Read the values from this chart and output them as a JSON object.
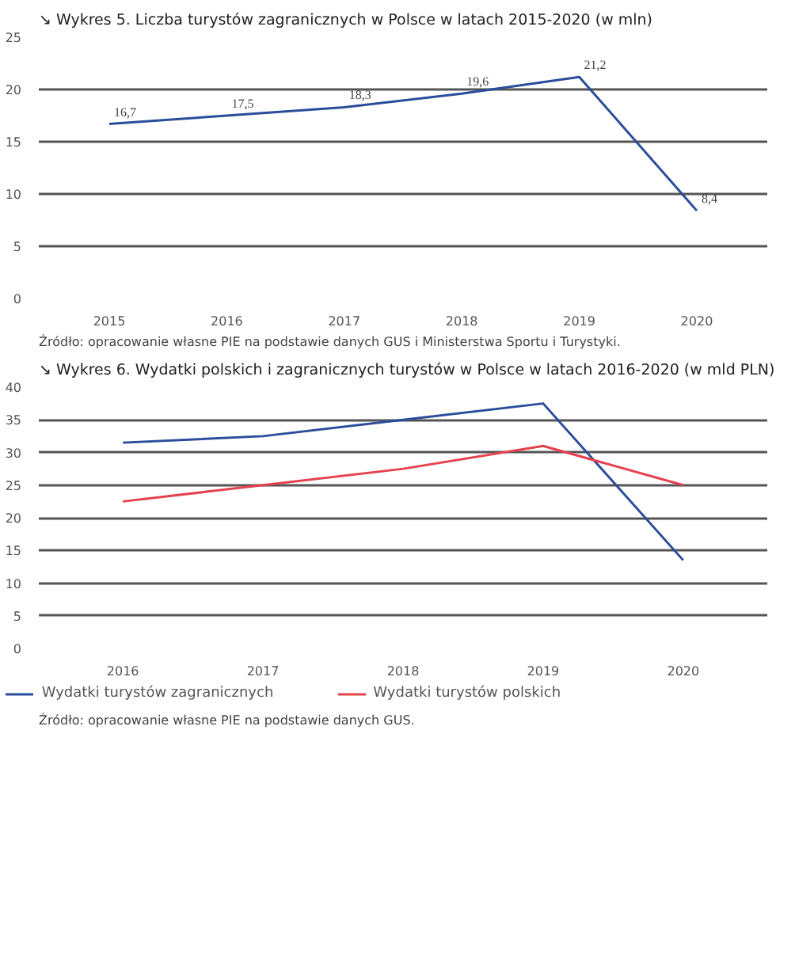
{
  "chart_data": [
    {
      "type": "line",
      "title": "↘ Wykres 5. Liczba turystów zagranicznych w Polsce w latach 2015-2020 (w mln)",
      "categories": [
        "2015",
        "2016",
        "2017",
        "2018",
        "2019",
        "2020"
      ],
      "series": [
        {
          "color": "#2a4d9b",
          "values": [
            16.7,
            17.5,
            18.3,
            19.6,
            21.2,
            8.4
          ]
        }
      ],
      "value_labels": [
        "16,7",
        "17,5",
        "18,3",
        "19,6",
        "21,2",
        "8,4"
      ],
      "ylim": [
        0,
        25
      ],
      "yticks": [
        0,
        5,
        10,
        15,
        20,
        25
      ],
      "grid": "y",
      "legend": false,
      "annotations": [
        "Źródło: opracowanie własne PIE na podstawie danych GUS i Ministerstwa Sportu i Turystyki."
      ]
    },
    {
      "type": "line",
      "title": "↘ Wykres 6. Wydatki polskich i zagranicznych turystów w Polsce w latach 2016-2020 (w mld PLN)",
      "categories": [
        "2016",
        "2017",
        "2018",
        "2019",
        "2020"
      ],
      "series": [
        {
          "name": "Wydatki turystów zagranicznych",
          "color": "#2a4d9b",
          "values": [
            31.5,
            32.5,
            35,
            37.5,
            13.5
          ]
        },
        {
          "name": "Wydatki turystów polskich",
          "color": "#e5414f",
          "values": [
            22.5,
            25,
            27.5,
            31,
            25
          ]
        }
      ],
      "ylim": [
        0,
        40
      ],
      "yticks": [
        0,
        5,
        10,
        15,
        20,
        25,
        30,
        35,
        40
      ],
      "grid": "y",
      "legend": "bottom",
      "annotations": [
        "Źródło: opracowanie własne PIE na podstawie danych GUS."
      ]
    }
  ]
}
